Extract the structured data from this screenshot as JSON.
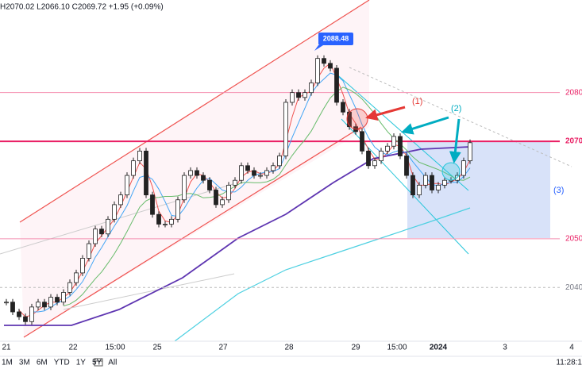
{
  "header": {
    "ohlc": "H2070.02  L2066.10  C2069.72  +1.95 (+0.09%)"
  },
  "chart": {
    "type": "candlestick",
    "closes": [
      2037,
      2035,
      2034,
      2033,
      2036,
      2037,
      2036,
      2038,
      2037,
      2039,
      2041,
      2043,
      2046,
      2049,
      2052,
      2051,
      2054,
      2057,
      2059,
      2063,
      2066,
      2068,
      2059,
      2055,
      2053,
      2053,
      2054,
      2058,
      2063,
      2064,
      2063,
      2062,
      2060,
      2057,
      2058,
      2061,
      2062,
      2065,
      2064,
      2063,
      2063,
      2064,
      2065,
      2067,
      2078,
      2080,
      2079,
      2080,
      2082,
      2087,
      2086,
      2085,
      2078,
      2076,
      2073,
      2072,
      2068,
      2065,
      2066,
      2068,
      2069,
      2071,
      2067,
      2063,
      2059,
      2061,
      2063,
      2060,
      2061,
      2062,
      2062,
      2063,
      2066,
      2069.72
    ],
    "ylim": [
      2028,
      2099
    ],
    "yticks": [
      2080,
      2070,
      2050,
      2040
    ],
    "peak_label": 2088.48,
    "x_labels": [
      "21",
      "22",
      "15:00",
      "25",
      "27",
      "28",
      "29",
      "15:00",
      "2024",
      "3",
      "4"
    ]
  },
  "annotations": [
    "(1)",
    "(2)",
    "(3)"
  ],
  "toolbar": {
    "ranges": [
      "1M",
      "3M",
      "6M",
      "YTD",
      "1Y",
      "5Y",
      "All"
    ],
    "time": "11:28:1"
  }
}
